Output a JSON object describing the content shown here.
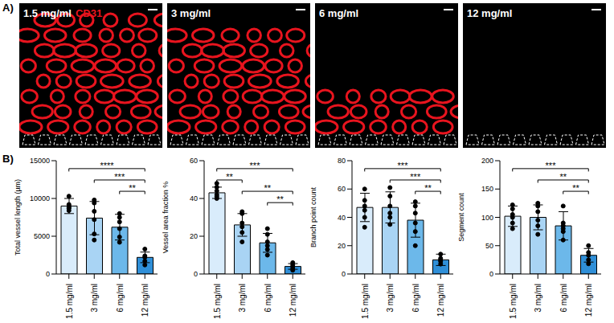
{
  "figure": {
    "panel_a": {
      "letter": "A)",
      "stain": "CD31",
      "images": [
        "1.5 mg/ml",
        "3 mg/ml",
        "6 mg/ml",
        "12 mg/ml"
      ]
    },
    "panel_b": {
      "letter": "B)"
    }
  },
  "chart_data": [
    {
      "type": "bar",
      "y_label": "Total vessel length (µm)",
      "categories": [
        "1.5 mg/ml",
        "3 mg/ml",
        "6 mg/ml",
        "12 mg/ml"
      ],
      "values": [
        9000,
        7400,
        6200,
        2200
      ],
      "error": [
        1000,
        2200,
        1700,
        700
      ],
      "points": [
        [
          8400,
          8700,
          9000,
          9200,
          10300,
          8800
        ],
        [
          4500,
          5300,
          7200,
          8300,
          9400,
          9800
        ],
        [
          4200,
          4900,
          6000,
          6900,
          7500,
          8000
        ],
        [
          1200,
          1700,
          2200,
          2400,
          3300
        ]
      ],
      "colors": [
        "#d9ecfb",
        "#a9d4f4",
        "#6cb8ea",
        "#2f8fd8"
      ],
      "ylim": [
        0,
        15000
      ],
      "yticks": [
        0,
        5000,
        10000,
        15000
      ],
      "significance": [
        {
          "from": "1.5 mg/ml",
          "to": "12 mg/ml",
          "label": "****"
        },
        {
          "from": "3 mg/ml",
          "to": "12 mg/ml",
          "label": "***"
        },
        {
          "from": "6 mg/ml",
          "to": "12 mg/ml",
          "label": "**"
        }
      ]
    },
    {
      "type": "bar",
      "y_label": "Vessel area fraction %",
      "categories": [
        "1.5 mg/ml",
        "3 mg/ml",
        "6 mg/ml",
        "12 mg/ml"
      ],
      "values": [
        43,
        26,
        16.5,
        4
      ],
      "error": [
        3,
        6,
        5,
        1.5
      ],
      "points": [
        [
          40,
          41,
          42,
          44,
          46,
          48
        ],
        [
          17,
          22,
          25,
          27,
          32,
          33
        ],
        [
          10,
          13,
          15,
          17,
          21,
          24
        ],
        [
          2,
          3,
          4,
          5,
          6
        ]
      ],
      "colors": [
        "#d9ecfb",
        "#a9d4f4",
        "#6cb8ea",
        "#2f8fd8"
      ],
      "ylim": [
        0,
        60
      ],
      "yticks": [
        0,
        20,
        40,
        60
      ],
      "significance": [
        {
          "from": "1.5 mg/ml",
          "to": "12 mg/ml",
          "label": "***"
        },
        {
          "from": "1.5 mg/ml",
          "to": "3 mg/ml",
          "label": "**"
        },
        {
          "from": "3 mg/ml",
          "to": "12 mg/ml",
          "label": "**"
        },
        {
          "from": "6 mg/ml",
          "to": "12 mg/ml",
          "label": "**"
        }
      ]
    },
    {
      "type": "bar",
      "y_label": "Branch point count",
      "categories": [
        "1.5 mg/ml",
        "3 mg/ml",
        "6 mg/ml",
        "12 mg/ml"
      ],
      "values": [
        47,
        47,
        38,
        10
      ],
      "error": [
        10,
        11,
        12,
        4
      ],
      "points": [
        [
          33,
          40,
          45,
          48,
          52,
          60
        ],
        [
          35,
          40,
          43,
          48,
          55,
          61
        ],
        [
          20,
          30,
          36,
          43,
          48,
          51
        ],
        [
          7,
          9,
          10,
          11,
          14
        ]
      ],
      "colors": [
        "#d9ecfb",
        "#a9d4f4",
        "#6cb8ea",
        "#2f8fd8"
      ],
      "ylim": [
        0,
        80
      ],
      "yticks": [
        0,
        20,
        40,
        60,
        80
      ],
      "significance": [
        {
          "from": "1.5 mg/ml",
          "to": "12 mg/ml",
          "label": "***"
        },
        {
          "from": "3 mg/ml",
          "to": "12 mg/ml",
          "label": "***"
        },
        {
          "from": "6 mg/ml",
          "to": "12 mg/ml",
          "label": "**"
        }
      ]
    },
    {
      "type": "bar",
      "y_label": "Segment count",
      "categories": [
        "1.5 mg/ml",
        "3 mg/ml",
        "6 mg/ml",
        "12 mg/ml"
      ],
      "values": [
        102,
        100,
        85,
        33
      ],
      "error": [
        18,
        22,
        25,
        12
      ],
      "points": [
        [
          80,
          90,
          100,
          105,
          115,
          122
        ],
        [
          70,
          85,
          95,
          110,
          120,
          125
        ],
        [
          60,
          75,
          80,
          85,
          90,
          120
        ],
        [
          18,
          25,
          33,
          38,
          50
        ]
      ],
      "colors": [
        "#d9ecfb",
        "#a9d4f4",
        "#6cb8ea",
        "#2f8fd8"
      ],
      "ylim": [
        0,
        200
      ],
      "yticks": [
        0,
        50,
        100,
        150,
        200
      ],
      "significance": [
        {
          "from": "1.5 mg/ml",
          "to": "12 mg/ml",
          "label": "***"
        },
        {
          "from": "3 mg/ml",
          "to": "12 mg/ml",
          "label": "**"
        },
        {
          "from": "6 mg/ml",
          "to": "12 mg/ml",
          "label": "**"
        }
      ]
    }
  ]
}
